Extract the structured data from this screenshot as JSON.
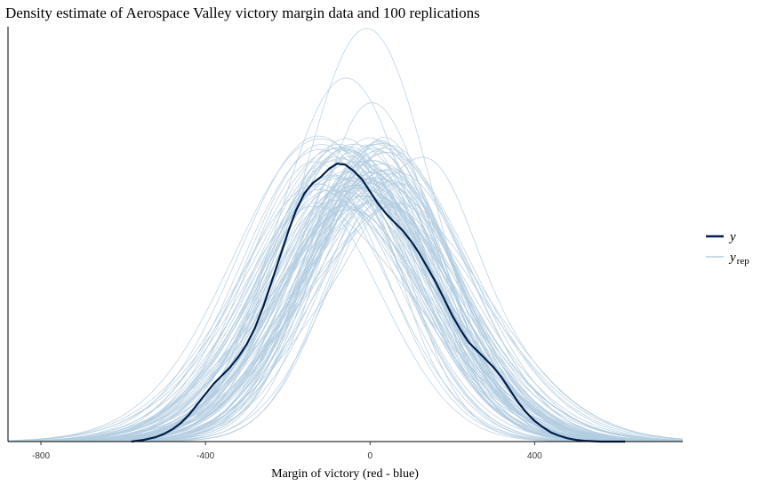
{
  "title": "Density estimate of Aerospace Valley victory margin data and 100 replications",
  "chart_data": {
    "type": "line",
    "title": "Density estimate of Aerospace Valley victory margin data and 100 replications",
    "xlabel": "Margin of victory (red - blue)",
    "ylabel": "",
    "xlim": [
      -880,
      760
    ],
    "ylim": [
      0,
      1
    ],
    "x_ticks": [
      -800,
      -400,
      0,
      400
    ],
    "x_tick_labels": [
      "-800",
      "-400",
      "0",
      "400"
    ],
    "y_axis_ticks": false,
    "legend": {
      "placement": "right",
      "entries": [
        {
          "label": "y",
          "color": "#011f4b"
        },
        {
          "label": "y",
          "subscript": "rep",
          "color": "#b3cde0"
        }
      ]
    },
    "observed": {
      "name": "y",
      "color": "#011f4b",
      "x": [
        -580,
        -550,
        -520,
        -500,
        -480,
        -460,
        -440,
        -420,
        -400,
        -380,
        -360,
        -340,
        -320,
        -300,
        -280,
        -260,
        -240,
        -220,
        -200,
        -180,
        -160,
        -140,
        -120,
        -100,
        -80,
        -60,
        -40,
        -20,
        0,
        20,
        40,
        60,
        80,
        100,
        120,
        140,
        160,
        180,
        200,
        220,
        240,
        260,
        280,
        300,
        320,
        340,
        360,
        380,
        400,
        420,
        440,
        460,
        480,
        500,
        520,
        560,
        620
      ],
      "y": [
        0.0,
        0.004,
        0.011,
        0.019,
        0.03,
        0.045,
        0.065,
        0.09,
        0.115,
        0.14,
        0.16,
        0.18,
        0.205,
        0.235,
        0.275,
        0.325,
        0.385,
        0.445,
        0.505,
        0.56,
        0.6,
        0.625,
        0.64,
        0.66,
        0.673,
        0.67,
        0.655,
        0.635,
        0.605,
        0.575,
        0.55,
        0.53,
        0.51,
        0.485,
        0.455,
        0.42,
        0.385,
        0.345,
        0.305,
        0.27,
        0.24,
        0.22,
        0.2,
        0.18,
        0.155,
        0.125,
        0.095,
        0.07,
        0.05,
        0.035,
        0.022,
        0.014,
        0.008,
        0.004,
        0.002,
        0.0,
        0.0
      ]
    },
    "replications": {
      "name": "y_rep",
      "color": "#b3cde0",
      "count": 100,
      "center_range": [
        -110,
        60
      ],
      "scale_range": [
        150,
        240
      ],
      "peak_range": [
        0.56,
        0.74
      ],
      "max_peak": 1.0,
      "x_range": [
        -880,
        760
      ]
    }
  }
}
